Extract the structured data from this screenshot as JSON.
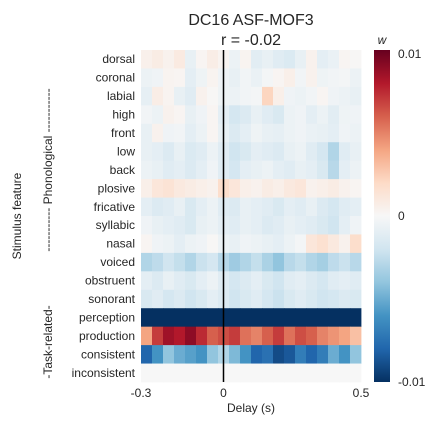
{
  "chart_data": {
    "type": "heatmap",
    "title_line1": "DC16 ASF-MOF3",
    "title_line2": "r = -0.02",
    "xlabel": "Delay (s)",
    "ylabel": "Stimulus feature",
    "x_range": [
      -0.3,
      0.5
    ],
    "x_ticks": [
      "-0.3",
      "0",
      "0.5"
    ],
    "zero_line_at": 0,
    "colorbar": {
      "label": "w",
      "ticks": [
        "0.01",
        "0",
        "-0.01"
      ],
      "range": [
        -0.01,
        0.01
      ],
      "colormap": "RdBu_r"
    },
    "group_labels": {
      "phonological": "----------- Phonological -----------",
      "task": "-Task-related-"
    },
    "rows": [
      {
        "feature": "dorsal",
        "group": "phonological",
        "weights": [
          0.0005,
          0.0008,
          0.0004,
          0.0009,
          -0.0008,
          0.0002,
          0.0007,
          0.0003,
          -0.0006,
          0.0003,
          -0.0011,
          -0.0008,
          -0.0012,
          -0.0015,
          -0.0008,
          0.0004,
          -0.001,
          -0.0007,
          0.0002,
          0.0001
        ]
      },
      {
        "feature": "coronal",
        "group": "phonological",
        "weights": [
          -0.0006,
          -0.0004,
          0.0003,
          0.0002,
          -0.001,
          -0.0005,
          0.0003,
          -0.0004,
          -0.0008,
          -0.0003,
          -0.0007,
          -0.0002,
          0.0002,
          0.0006,
          -0.0003,
          0.0004,
          -0.0005,
          -0.0003,
          -0.0002,
          -0.0006
        ]
      },
      {
        "feature": "labial",
        "group": "phonological",
        "weights": [
          -0.0009,
          0.0007,
          0.0003,
          -0.0008,
          -0.0012,
          0.0004,
          0.0001,
          -0.0005,
          -0.0006,
          -0.0003,
          -0.0002,
          0.0022,
          0.0006,
          -0.0004,
          -0.0006,
          -0.0003,
          0.0002,
          -0.0004,
          -0.0006,
          -0.0008
        ]
      },
      {
        "feature": "high",
        "group": "phonological",
        "weights": [
          -0.0003,
          -0.0006,
          0.0004,
          0.0002,
          -0.0008,
          -0.0004,
          0.0002,
          -0.001,
          -0.0018,
          -0.0014,
          -0.0008,
          -0.0012,
          -0.0016,
          -0.0006,
          -0.0004,
          -0.001,
          -0.0006,
          -0.0011,
          -0.0005,
          -0.0004
        ]
      },
      {
        "feature": "front",
        "group": "phonological",
        "weights": [
          -0.0008,
          0.0004,
          -0.0004,
          -0.0003,
          -0.001,
          -0.0006,
          0.0002,
          -0.0008,
          -0.0014,
          -0.001,
          -0.0005,
          -0.0008,
          -0.0009,
          -0.0006,
          -0.0004,
          -0.0007,
          -0.0008,
          -0.001,
          -0.0004,
          -0.0006
        ]
      },
      {
        "feature": "low",
        "group": "phonological",
        "weights": [
          -0.0008,
          -0.001,
          -0.0014,
          -0.0008,
          -0.0015,
          -0.0012,
          -0.0006,
          -0.0012,
          -0.002,
          -0.0016,
          -0.001,
          -0.0012,
          -0.0014,
          -0.0008,
          -0.0006,
          -0.0012,
          -0.0018,
          -0.003,
          -0.0012,
          -0.0008
        ]
      },
      {
        "feature": "back",
        "group": "phonological",
        "weights": [
          -0.0006,
          -0.0008,
          -0.0012,
          -0.001,
          -0.0014,
          -0.001,
          -0.0004,
          -0.0012,
          -0.0018,
          -0.001,
          -0.0008,
          -0.0006,
          -0.001,
          -0.0012,
          -0.0008,
          -0.001,
          -0.0016,
          -0.0028,
          -0.001,
          -0.0006
        ]
      },
      {
        "feature": "plosive",
        "group": "phonological",
        "weights": [
          0.0006,
          0.0012,
          0.0014,
          0.001,
          0.0008,
          0.0006,
          0.0004,
          0.0018,
          0.0012,
          0.0006,
          0.0004,
          0.0008,
          0.0006,
          0.001,
          0.0012,
          0.0004,
          0.0006,
          0.0008,
          0.0004,
          0.0002
        ]
      },
      {
        "feature": "fricative",
        "group": "phonological",
        "weights": [
          -0.001,
          -0.0014,
          -0.0012,
          -0.0008,
          -0.0016,
          -0.001,
          -0.0006,
          -0.0012,
          -0.0014,
          -0.0008,
          -0.001,
          -0.0012,
          -0.0016,
          -0.001,
          -0.0012,
          -0.0008,
          -0.0014,
          -0.0018,
          -0.0012,
          -0.001
        ]
      },
      {
        "feature": "syllabic",
        "group": "phonological",
        "weights": [
          -0.0004,
          -0.0008,
          -0.001,
          -0.0012,
          -0.0016,
          -0.0008,
          -0.0006,
          -0.001,
          -0.0012,
          -0.0008,
          -0.001,
          -0.0014,
          -0.0012,
          -0.0008,
          -0.001,
          -0.0012,
          -0.0016,
          -0.002,
          -0.001,
          -0.0004
        ]
      },
      {
        "feature": "nasal",
        "group": "phonological",
        "weights": [
          0.0002,
          -0.0004,
          -0.0006,
          -0.001,
          -0.0006,
          -0.0004,
          0.0001,
          -0.0006,
          -0.0008,
          -0.0004,
          -0.0006,
          -0.0008,
          -0.001,
          -0.0006,
          -0.0002,
          0.0012,
          0.0016,
          0.001,
          0.0004,
          0.0018
        ]
      },
      {
        "feature": "voiced",
        "group": "phonological",
        "weights": [
          -0.003,
          -0.0026,
          -0.002,
          -0.0024,
          -0.003,
          -0.0022,
          -0.0018,
          -0.0028,
          -0.0036,
          -0.003,
          -0.0024,
          -0.0032,
          -0.004,
          -0.0028,
          -0.0024,
          -0.003,
          -0.0034,
          -0.0026,
          -0.0022,
          -0.0028
        ]
      },
      {
        "feature": "obstruent",
        "group": "phonological",
        "weights": [
          -0.001,
          -0.0014,
          -0.0008,
          -0.0012,
          -0.0016,
          -0.001,
          -0.0006,
          -0.0012,
          -0.0018,
          -0.0014,
          -0.001,
          -0.0016,
          -0.002,
          -0.0012,
          -0.001,
          -0.0014,
          -0.0018,
          -0.0012,
          -0.001,
          -0.0012
        ]
      },
      {
        "feature": "sonorant",
        "group": "phonological",
        "weights": [
          -0.0016,
          -0.0012,
          -0.0018,
          -0.0014,
          -0.002,
          -0.0016,
          -0.001,
          -0.0014,
          -0.002,
          -0.0016,
          -0.0012,
          -0.0018,
          -0.0022,
          -0.0016,
          -0.0012,
          -0.0016,
          -0.002,
          -0.0018,
          -0.0014,
          -0.0016
        ]
      },
      {
        "feature": "perception",
        "group": "task",
        "weights": [
          -0.01,
          -0.01,
          -0.01,
          -0.01,
          -0.01,
          -0.01,
          -0.01,
          -0.01,
          -0.01,
          -0.01,
          -0.01,
          -0.01,
          -0.01,
          -0.01,
          -0.01,
          -0.01,
          -0.01,
          -0.01,
          -0.01,
          -0.01
        ]
      },
      {
        "feature": "production",
        "group": "task",
        "weights": [
          0.004,
          0.007,
          0.0085,
          0.008,
          0.009,
          0.0075,
          0.006,
          0.0065,
          0.007,
          0.0055,
          0.005,
          0.006,
          0.007,
          0.0055,
          0.0065,
          0.006,
          0.005,
          0.0045,
          0.004,
          0.003
        ]
      },
      {
        "feature": "consistent",
        "group": "task",
        "weights": [
          -0.008,
          -0.006,
          -0.004,
          -0.005,
          -0.0055,
          -0.006,
          -0.004,
          -0.003,
          -0.0045,
          -0.006,
          -0.008,
          -0.0075,
          -0.009,
          -0.0085,
          -0.007,
          -0.008,
          -0.007,
          -0.005,
          -0.006,
          -0.004
        ]
      },
      {
        "feature": "inconsistent",
        "group": "task",
        "weights": [
          0,
          0,
          0,
          0,
          0,
          0,
          0,
          0,
          0,
          0,
          0,
          0,
          0,
          0,
          0,
          0,
          0,
          0,
          0,
          0
        ]
      }
    ]
  }
}
